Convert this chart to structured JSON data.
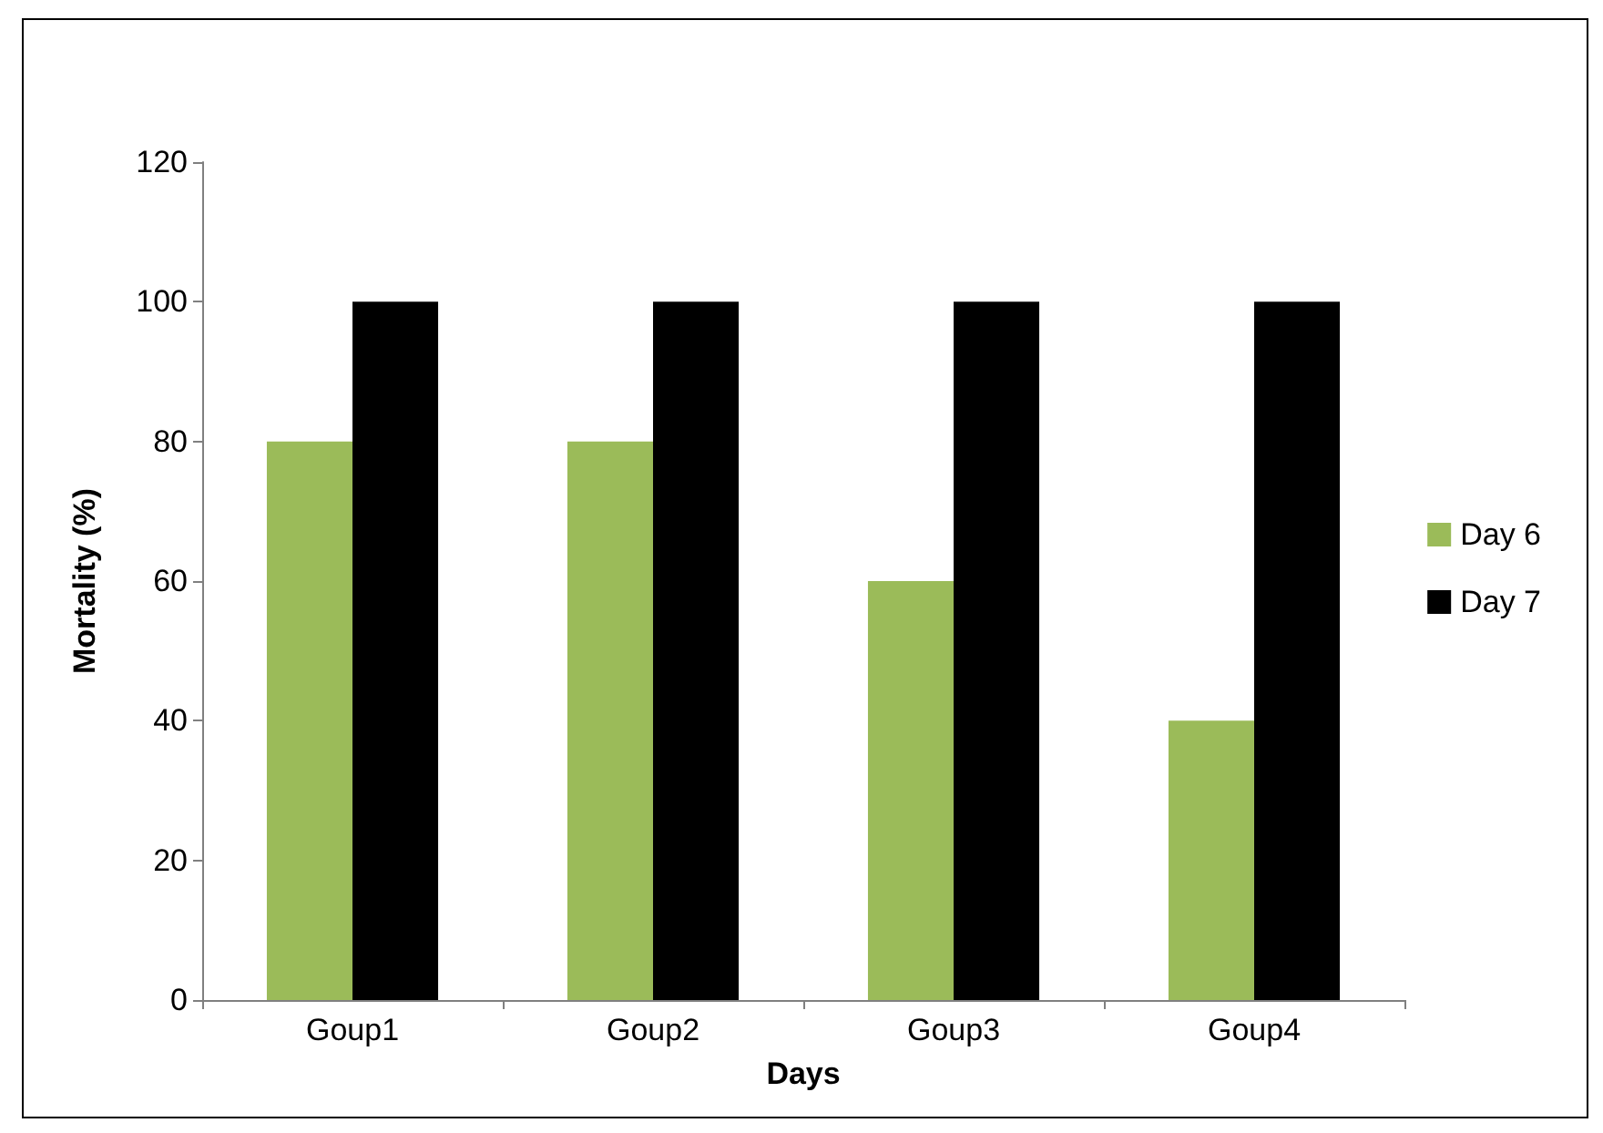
{
  "chart_data": {
    "type": "bar",
    "xlabel": "Days",
    "ylabel": "Mortality (%)",
    "categories": [
      "Goup1",
      "Goup2",
      "Goup3",
      "Goup4"
    ],
    "series": [
      {
        "name": "Day 6",
        "color": "#9bbb59",
        "values": [
          80,
          80,
          60,
          40
        ]
      },
      {
        "name": "Day 7",
        "color": "#000000",
        "values": [
          100,
          100,
          100,
          100
        ]
      }
    ],
    "ylim": [
      0,
      120
    ],
    "yticks": [
      0,
      20,
      40,
      60,
      80,
      100,
      120
    ],
    "grid": false,
    "legend": "right"
  }
}
